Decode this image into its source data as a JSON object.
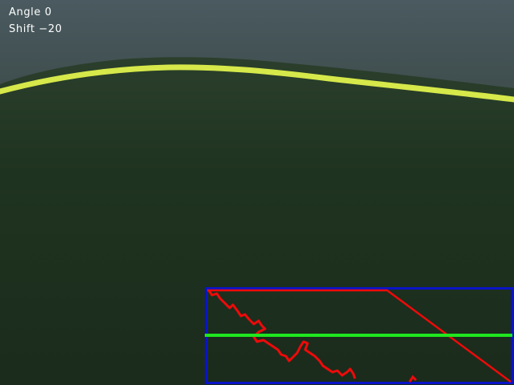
{
  "hud": {
    "angle_label": "Angle",
    "angle_value": "0",
    "shift_label": "Shift",
    "shift_value": "−20"
  },
  "overlay": {
    "roi_box_color": "#0a14c8",
    "center_line_color": "#1fe61f",
    "detection_color": "#ee0a0a",
    "tape_color": "#d6e84a"
  }
}
